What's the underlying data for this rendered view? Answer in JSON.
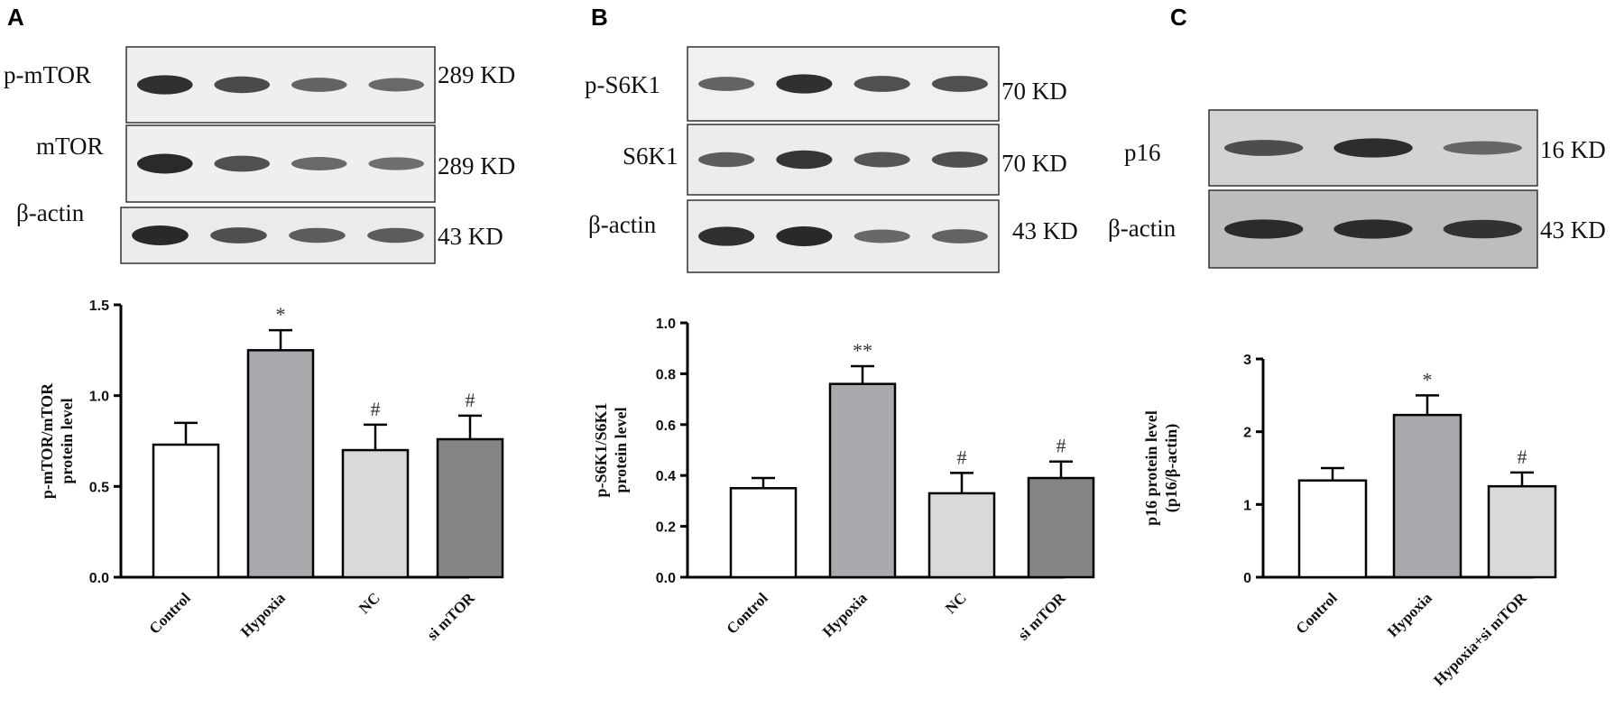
{
  "panels": [
    {
      "letter": "A",
      "blots": [
        {
          "label": "p-mTOR",
          "kd": "289 KD",
          "bands": [
            0.95,
            0.75,
            0.55,
            0.5
          ]
        },
        {
          "label": "mTOR",
          "kd": "289 KD",
          "bands": [
            1.0,
            0.7,
            0.5,
            0.45
          ]
        },
        {
          "label": "β-actin",
          "kd": "43 KD",
          "bands": [
            1.0,
            0.7,
            0.6,
            0.6
          ]
        }
      ]
    },
    {
      "letter": "B",
      "blots": [
        {
          "label": "p-S6K1",
          "kd": "70 KD",
          "bands": [
            0.55,
            0.95,
            0.7,
            0.7
          ]
        },
        {
          "label": "S6K1",
          "kd": "70 KD",
          "bands": [
            0.6,
            0.9,
            0.65,
            0.7
          ]
        },
        {
          "label": "β-actin",
          "kd": "43 KD",
          "bands": [
            0.95,
            1.0,
            0.5,
            0.55
          ]
        }
      ]
    },
    {
      "letter": "C",
      "blots": [
        {
          "label": "p16",
          "kd": "16 KD",
          "bands": [
            0.7,
            0.95,
            0.5
          ]
        },
        {
          "label": "β-actin",
          "kd": "43 KD",
          "bands": [
            0.95,
            0.95,
            0.9
          ]
        }
      ]
    }
  ],
  "colors": {
    "control": "#ffffff",
    "hypoxia": "#a9a9ad",
    "nc": "#d9d9d9",
    "si_mtor": "#858585",
    "axis": "#000000"
  },
  "chart_data": [
    {
      "type": "bar",
      "ylabel": [
        "p-mTOR/mTOR",
        "protein level"
      ],
      "categories": [
        "Control",
        "Hypoxia",
        "NC",
        "si mTOR"
      ],
      "values": [
        0.73,
        1.25,
        0.7,
        0.76
      ],
      "errors": [
        0.12,
        0.11,
        0.14,
        0.13
      ],
      "annotations": [
        "",
        "*",
        "#",
        "#"
      ],
      "ylim": [
        0,
        1.5
      ],
      "yticks": [
        "0.0",
        "0.5",
        "1.0",
        "1.5"
      ],
      "colors": [
        "#ffffff",
        "#a9a9ad",
        "#d9d9d9",
        "#858585"
      ]
    },
    {
      "type": "bar",
      "ylabel": [
        "p-S6K1/S6K1",
        "protein level"
      ],
      "categories": [
        "Control",
        "Hypoxia",
        "NC",
        "si mTOR"
      ],
      "values": [
        0.35,
        0.76,
        0.33,
        0.39
      ],
      "errors": [
        0.04,
        0.07,
        0.08,
        0.065
      ],
      "annotations": [
        "",
        "**",
        "#",
        "#"
      ],
      "ylim": [
        0,
        1.0
      ],
      "yticks": [
        "0.0",
        "0.2",
        "0.4",
        "0.6",
        "0.8",
        "1.0"
      ],
      "colors": [
        "#ffffff",
        "#a9a9ad",
        "#d9d9d9",
        "#858585"
      ]
    },
    {
      "type": "bar",
      "ylabel": [
        "p16 protein level",
        "(p16/β-actin)"
      ],
      "categories": [
        "Control",
        "Hypoxia",
        "Hypoxia+si mTOR"
      ],
      "values": [
        1.33,
        2.23,
        1.25
      ],
      "errors": [
        0.17,
        0.27,
        0.19
      ],
      "annotations": [
        "",
        "*",
        "#"
      ],
      "ylim": [
        0,
        3
      ],
      "yticks": [
        "0",
        "1",
        "2",
        "3"
      ],
      "colors": [
        "#ffffff",
        "#a9a9ad",
        "#d9d9d9"
      ]
    }
  ]
}
